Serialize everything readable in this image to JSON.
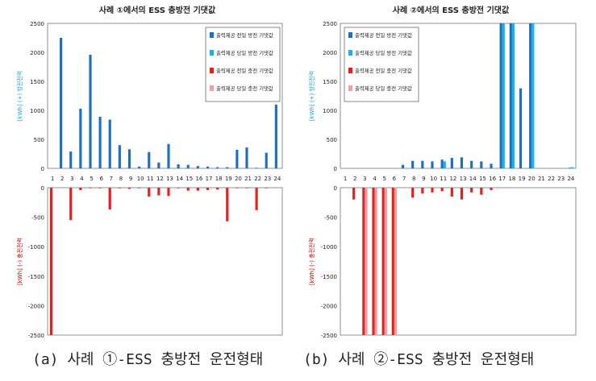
{
  "chart_data": [
    {
      "type": "bar",
      "title": "사례 ①에서의 ESS 충방전 기댓값",
      "categories": [
        "1",
        "2",
        "3",
        "4",
        "5",
        "6",
        "7",
        "8",
        "9",
        "10",
        "11",
        "12",
        "13",
        "14",
        "15",
        "16",
        "17",
        "18",
        "19",
        "20",
        "21",
        "22",
        "23",
        "24"
      ],
      "upper": {
        "ylim": [
          0,
          2500
        ],
        "ticks": [
          "0",
          "500",
          "1000",
          "1500",
          "2000",
          "2500"
        ],
        "ylabel": "[kWh] (+) 방전전력",
        "series": [
          {
            "name": "출력제공 전일 방전 기댓값",
            "color": "#1f6fbf",
            "values": [
              0,
              2250,
              290,
              1030,
              1960,
              890,
              840,
              400,
              330,
              30,
              280,
              100,
              420,
              70,
              60,
              40,
              30,
              20,
              20,
              320,
              360,
              10,
              270,
              1100
            ]
          },
          {
            "name": "출력제공 당일 방전 기댓값",
            "color": "#17b4ea",
            "values": [
              0,
              0,
              0,
              0,
              0,
              0,
              0,
              0,
              0,
              0,
              0,
              0,
              0,
              0,
              0,
              0,
              0,
              0,
              0,
              0,
              0,
              0,
              0,
              0
            ]
          }
        ]
      },
      "lower": {
        "ylim": [
          -2500,
          0
        ],
        "ticks": [
          "0",
          "-500",
          "-1000",
          "-1500",
          "-2000",
          "-2500"
        ],
        "ylabel": "[kWh] (-) 충전전력",
        "series": [
          {
            "name": "출력제공 전일 충전 기댓값",
            "color": "#ee1c1c",
            "values": [
              -2500,
              0,
              -550,
              -40,
              -10,
              -10,
              -370,
              -10,
              -20,
              -10,
              -150,
              -130,
              -140,
              -10,
              -50,
              -50,
              -40,
              -30,
              -570,
              -10,
              -10,
              -380,
              -10,
              0
            ]
          },
          {
            "name": "출력제공 당일 충전 기댓값",
            "color": "#f0a0a0",
            "values": [
              0,
              0,
              0,
              0,
              0,
              0,
              0,
              0,
              0,
              0,
              0,
              0,
              0,
              0,
              0,
              0,
              0,
              0,
              0,
              0,
              0,
              0,
              0,
              0
            ]
          }
        ]
      },
      "caption": "(a) 사례 ①-ESS 충방전 운전형태"
    },
    {
      "type": "bar",
      "title": "사례 ②에서의 ESS 충방전 기댓값",
      "categories": [
        "1",
        "2",
        "3",
        "4",
        "5",
        "6",
        "7",
        "8",
        "9",
        "10",
        "11",
        "12",
        "13",
        "14",
        "15",
        "16",
        "17",
        "18",
        "19",
        "20",
        "21",
        "22",
        "23",
        "24"
      ],
      "upper": {
        "ylim": [
          0,
          2500
        ],
        "ticks": [
          "0",
          "500",
          "1000",
          "1500",
          "2000",
          "2500"
        ],
        "ylabel": "[kWh] (+) 방전전력",
        "series": [
          {
            "name": "출력제공 전일 방전 기댓값",
            "color": "#1f6fbf",
            "values": [
              0,
              0,
              0,
              0,
              0,
              0,
              60,
              130,
              130,
              120,
              150,
              180,
              190,
              130,
              120,
              80,
              2500,
              2500,
              1380,
              2500,
              0,
              0,
              0,
              10
            ]
          },
          {
            "name": "출력제공 당일 방전 기댓값",
            "color": "#17b4ea",
            "values": [
              0,
              0,
              0,
              0,
              0,
              0,
              0,
              0,
              0,
              0,
              120,
              0,
              0,
              0,
              0,
              0,
              2500,
              2500,
              0,
              2500,
              0,
              0,
              0,
              20
            ]
          }
        ]
      },
      "lower": {
        "ylim": [
          -2500,
          0
        ],
        "ticks": [
          "0",
          "-500",
          "-1000",
          "-1500",
          "-2000",
          "-2500"
        ],
        "ylabel": "[kWh] (-) 충전전력",
        "series": [
          {
            "name": "출력제공 전일 충전 기댓값",
            "color": "#ee1c1c",
            "values": [
              0,
              -200,
              -2500,
              -2500,
              -2500,
              -2500,
              0,
              -170,
              -100,
              -80,
              -60,
              -150,
              -200,
              -80,
              -120,
              -40,
              0,
              0,
              0,
              0,
              0,
              0,
              0,
              0
            ]
          },
          {
            "name": "출력제공 당일 충전 기댓값",
            "color": "#f0a0a0",
            "values": [
              0,
              0,
              -2500,
              -2500,
              -2500,
              -2500,
              0,
              0,
              0,
              0,
              0,
              0,
              0,
              0,
              0,
              0,
              0,
              0,
              0,
              0,
              0,
              0,
              0,
              0
            ]
          }
        ]
      },
      "caption": "(b) 사례 ②-ESS 충방전 운전형태"
    }
  ]
}
